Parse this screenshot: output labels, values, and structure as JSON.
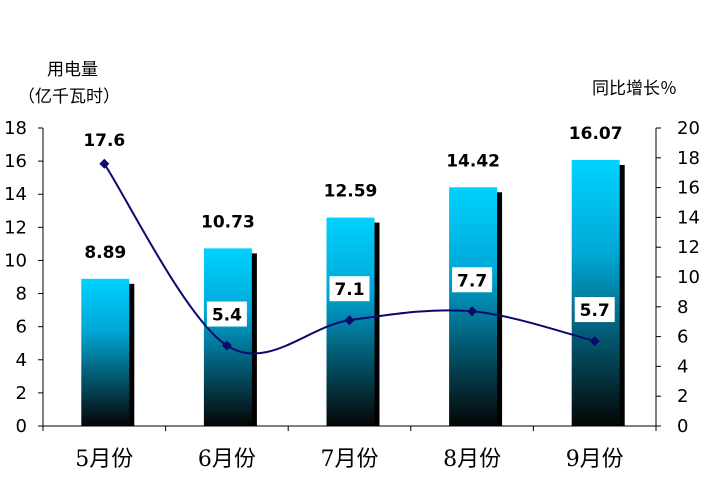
{
  "chart_data": {
    "type": "bar",
    "categories": [
      "5月份",
      "6月份",
      "7月份",
      "8月份",
      "9月份"
    ],
    "series": [
      {
        "type": "bar",
        "axis": "left",
        "values": [
          8.89,
          10.73,
          12.59,
          14.42,
          16.07
        ],
        "labels": [
          "8.89",
          "10.73",
          "12.59",
          "14.42",
          "16.07"
        ]
      },
      {
        "type": "line",
        "axis": "right",
        "values": [
          17.6,
          5.4,
          7.1,
          7.7,
          5.7
        ],
        "labels": [
          "17.6",
          "5.4",
          "7.1",
          "7.7",
          "5.7"
        ]
      }
    ],
    "ylabel_left": [
      "用电量",
      "（亿千瓦时）"
    ],
    "ylabel_right": "同比增长％",
    "ylim_left": [
      0,
      18
    ],
    "ylim_right": [
      0,
      20
    ],
    "yticks_left": [
      "0",
      "2",
      "4",
      "6",
      "8",
      "10",
      "12",
      "14",
      "16",
      "18"
    ],
    "yticks_right": [
      "0",
      "2",
      "4",
      "6",
      "8",
      "10",
      "12",
      "14",
      "16",
      "18",
      "20"
    ],
    "grid": false,
    "colors": {
      "bar_top": "#00d2ff",
      "bar_bottom": "#050505",
      "bar_shadow": "#000000",
      "line": "#0a0a6e",
      "marker": "#0a0a6e"
    }
  }
}
